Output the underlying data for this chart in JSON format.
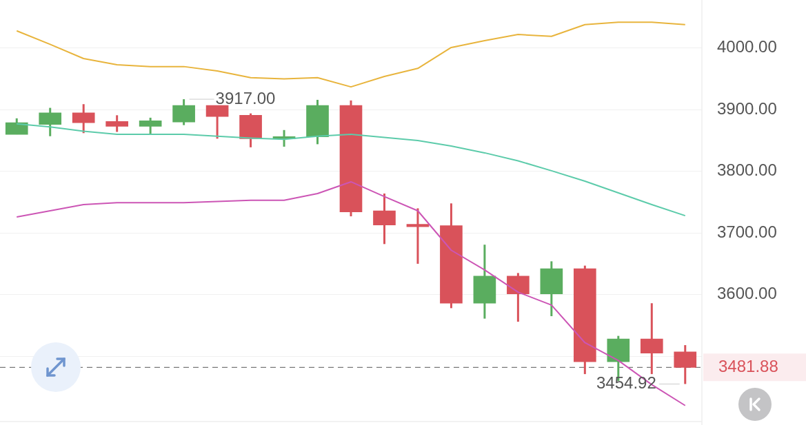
{
  "chart_data": {
    "type": "candlestick",
    "categories": [
      null,
      null,
      null,
      null,
      null,
      null,
      null,
      null,
      null,
      null,
      null,
      null,
      null,
      null,
      null,
      null,
      null,
      null,
      null,
      null,
      null
    ],
    "ohlc": [
      [
        3860,
        3886,
        3860,
        3879
      ],
      [
        3876,
        3903,
        3857,
        3895
      ],
      [
        3895,
        3909,
        3862,
        3879
      ],
      [
        3881,
        3891,
        3864,
        3873
      ],
      [
        3873,
        3887,
        3861,
        3882
      ],
      [
        3880,
        3917,
        3875,
        3907
      ],
      [
        3907,
        3907,
        3853,
        3889
      ],
      [
        3891,
        3894,
        3839,
        3853
      ],
      [
        3853,
        3867,
        3840,
        3856
      ],
      [
        3856,
        3916,
        3844,
        3907
      ],
      [
        3907,
        3915,
        3727,
        3734
      ],
      [
        3736,
        3764,
        3682,
        3713
      ],
      [
        3714,
        3740,
        3650,
        3710
      ],
      [
        3712,
        3748,
        3578,
        3586
      ],
      [
        3586,
        3681,
        3561,
        3630
      ],
      [
        3630,
        3635,
        3556,
        3601
      ],
      [
        3601,
        3654,
        3565,
        3642
      ],
      [
        3642,
        3647,
        3471,
        3491
      ],
      [
        3491,
        3533,
        3460,
        3528
      ],
      [
        3528,
        3586,
        3471,
        3505
      ],
      [
        3507,
        3518,
        3454.92,
        3481.88
      ]
    ],
    "colors": [
      "#5aad5f",
      "#5aad5f",
      "#d9525a",
      "#d9525a",
      "#5aad5f",
      "#5aad5f",
      "#d9525a",
      "#d9525a",
      "#5aad5f",
      "#5aad5f",
      "#d9525a",
      "#d9525a",
      "#d9525a",
      "#d9525a",
      "#5aad5f",
      "#d9525a",
      "#5aad5f",
      "#d9525a",
      "#5aad5f",
      "#d9525a",
      "#d9525a"
    ],
    "series": [
      {
        "type": "line",
        "color": "#e8b43c",
        "values": [
          4028,
          4006,
          3983,
          3973,
          3970,
          3970,
          3963,
          3952,
          3950,
          3952,
          3937,
          3954,
          3967,
          4001,
          4012,
          4022,
          4019,
          4038,
          4042,
          4042,
          4038
        ]
      },
      {
        "type": "line",
        "color": "#5ccbaa",
        "values": [
          3877,
          3872,
          3865,
          3860,
          3860,
          3860,
          3857,
          3854,
          3852,
          3857,
          3860,
          3855,
          3850,
          3841,
          3830,
          3817,
          3801,
          3784,
          3765,
          3746,
          3728
        ]
      },
      {
        "type": "line",
        "color": "#cc55b5",
        "values": [
          3726,
          3736,
          3746,
          3749,
          3749,
          3749,
          3751,
          3753,
          3753,
          3764,
          3783,
          3759,
          3736,
          3672,
          3640,
          3604,
          3583,
          3522,
          3493,
          3454,
          3420
        ]
      }
    ],
    "ylim": [
      3394,
      4078
    ],
    "yticks": [
      {
        "value": 3500,
        "label": null
      },
      {
        "value": 3600,
        "label": "3600.00"
      },
      {
        "value": 3700,
        "label": "3700.00"
      },
      {
        "value": 3800,
        "label": "3800.00"
      },
      {
        "value": 3900,
        "label": "3900.00"
      },
      {
        "value": 4000,
        "label": "4000.00"
      }
    ],
    "grid": "y",
    "marker": "none",
    "tick_labels": "y",
    "ref_lines": [
      {
        "axis": "y",
        "value": 3481.88,
        "label": "3481.88",
        "color": "#777777",
        "line_style": "dashed"
      }
    ],
    "annotations": [
      "3917.00",
      "3454.92"
    ]
  }
}
